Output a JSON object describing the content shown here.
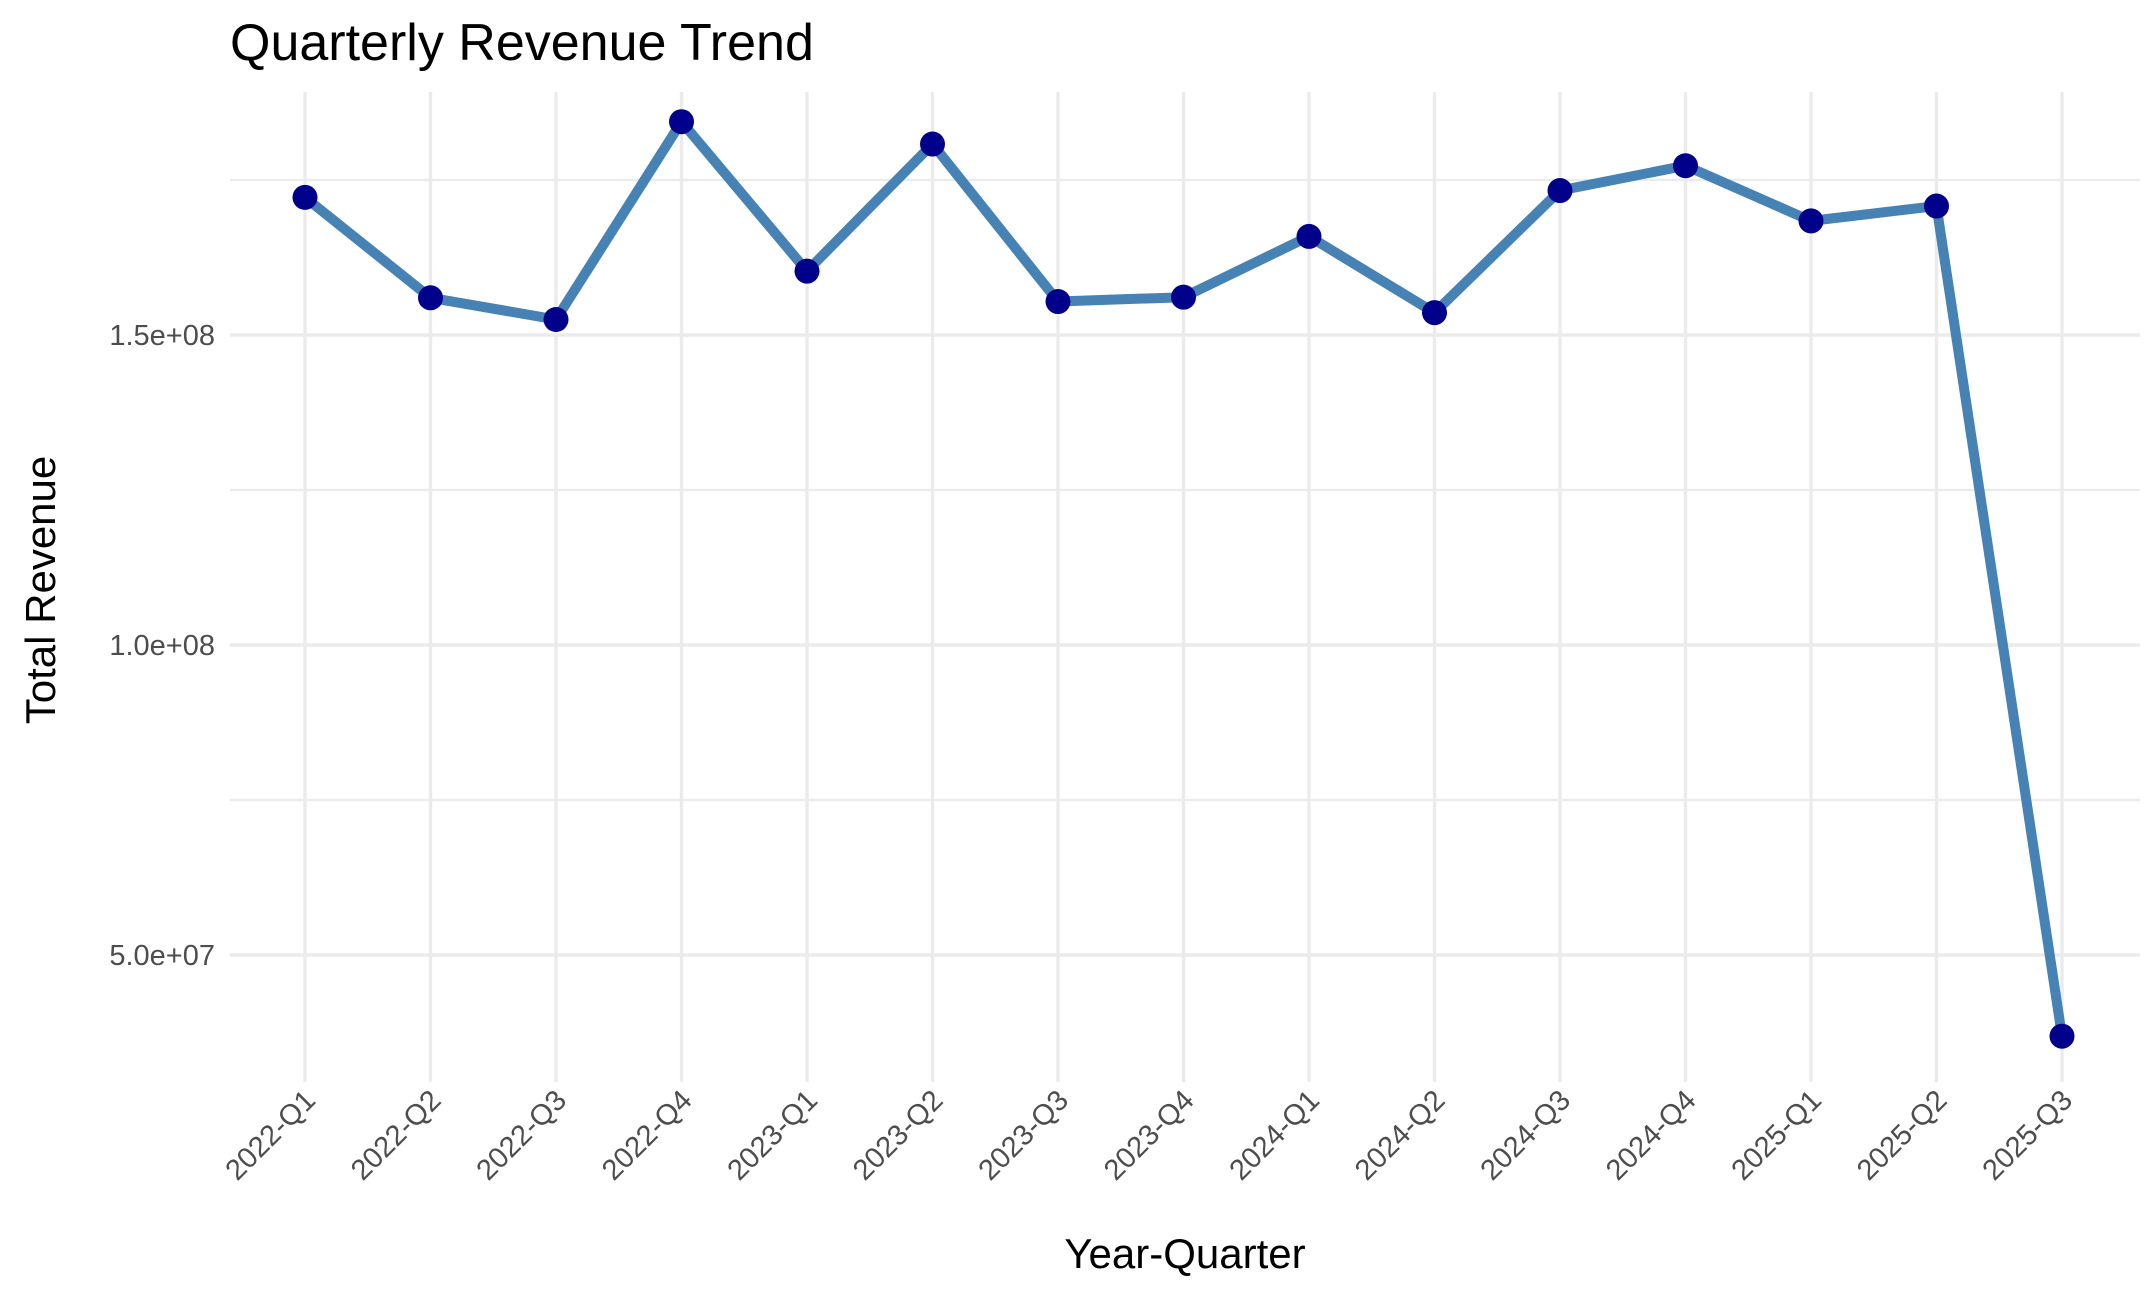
{
  "chart_data": {
    "type": "line",
    "title": "Quarterly Revenue Trend",
    "xlabel": "Year-Quarter",
    "ylabel": "Total Revenue",
    "categories": [
      "2022-Q1",
      "2022-Q2",
      "2022-Q3",
      "2022-Q4",
      "2023-Q1",
      "2023-Q2",
      "2023-Q3",
      "2023-Q4",
      "2024-Q1",
      "2024-Q2",
      "2024-Q3",
      "2024-Q4",
      "2025-Q1",
      "2025-Q2",
      "2025-Q3"
    ],
    "series": [
      {
        "values": [
          172200000,
          156000000,
          152500000,
          184400000,
          160300000,
          180800000,
          155400000,
          156100000,
          165900000,
          153600000,
          173300000,
          177300000,
          168400000,
          170800000,
          36900000
        ]
      }
    ],
    "y_ticks": [
      {
        "value": 50000000,
        "label": "5.0e+07"
      },
      {
        "value": 100000000,
        "label": "1.0e+08"
      },
      {
        "value": 150000000,
        "label": "1.5e+08"
      }
    ],
    "y_minor_ticks": [
      75000000,
      125000000,
      175000000
    ],
    "ylim": [
      31000000,
      188000000
    ],
    "grid": true,
    "legend": "none",
    "colors": {
      "line": "#4682b4",
      "point": "#00008b",
      "grid": "#ebebeb",
      "tick_text": "#4d4d4d",
      "title_text": "#000000"
    }
  }
}
